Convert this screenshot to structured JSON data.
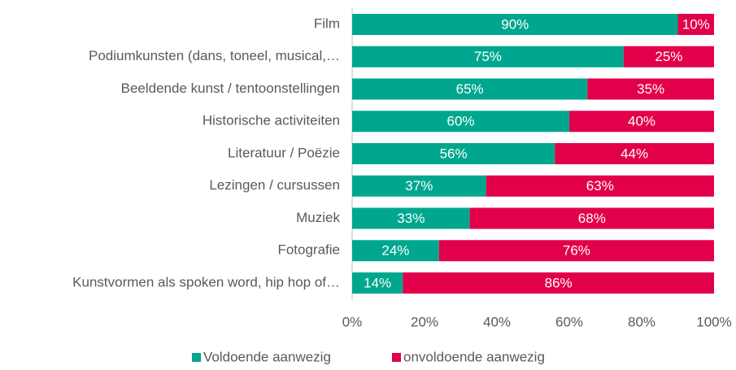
{
  "chart_data": {
    "type": "stacked_bar_horizontal",
    "categories": [
      "Film",
      "Podiumkunsten (dans, toneel, musical,…",
      "Beeldende kunst / tentoonstellingen",
      "Historische activiteiten",
      "Literatuur / Poëzie",
      "Lezingen / cursussen",
      "Muziek",
      "Fotografie",
      "Kunstvormen als spoken word, hip hop of…"
    ],
    "series": [
      {
        "name": "Voldoende aanwezig",
        "color": "#00a78e",
        "values": [
          90,
          75,
          65,
          60,
          56,
          37,
          32.5,
          24,
          14
        ],
        "value_labels": [
          "90%",
          "75%",
          "65%",
          "60%",
          "56%",
          "37%",
          "33%",
          "24%",
          "14%"
        ]
      },
      {
        "name": "onvoldoende aanwezig",
        "color": "#e2004a",
        "values": [
          10,
          25,
          35,
          40,
          44,
          63,
          67.5,
          76,
          86
        ],
        "value_labels": [
          "10%",
          "25%",
          "35%",
          "40%",
          "44%",
          "63%",
          "68%",
          "76%",
          "86%"
        ]
      }
    ],
    "xlim": [
      0,
      100
    ],
    "xticks": [
      {
        "value": 0,
        "label": "0%"
      },
      {
        "value": 20,
        "label": "20%"
      },
      {
        "value": 40,
        "label": "40%"
      },
      {
        "value": 60,
        "label": "60%"
      },
      {
        "value": 80,
        "label": "80%"
      },
      {
        "value": 100,
        "label": "100%"
      }
    ],
    "legend": "bottom"
  }
}
